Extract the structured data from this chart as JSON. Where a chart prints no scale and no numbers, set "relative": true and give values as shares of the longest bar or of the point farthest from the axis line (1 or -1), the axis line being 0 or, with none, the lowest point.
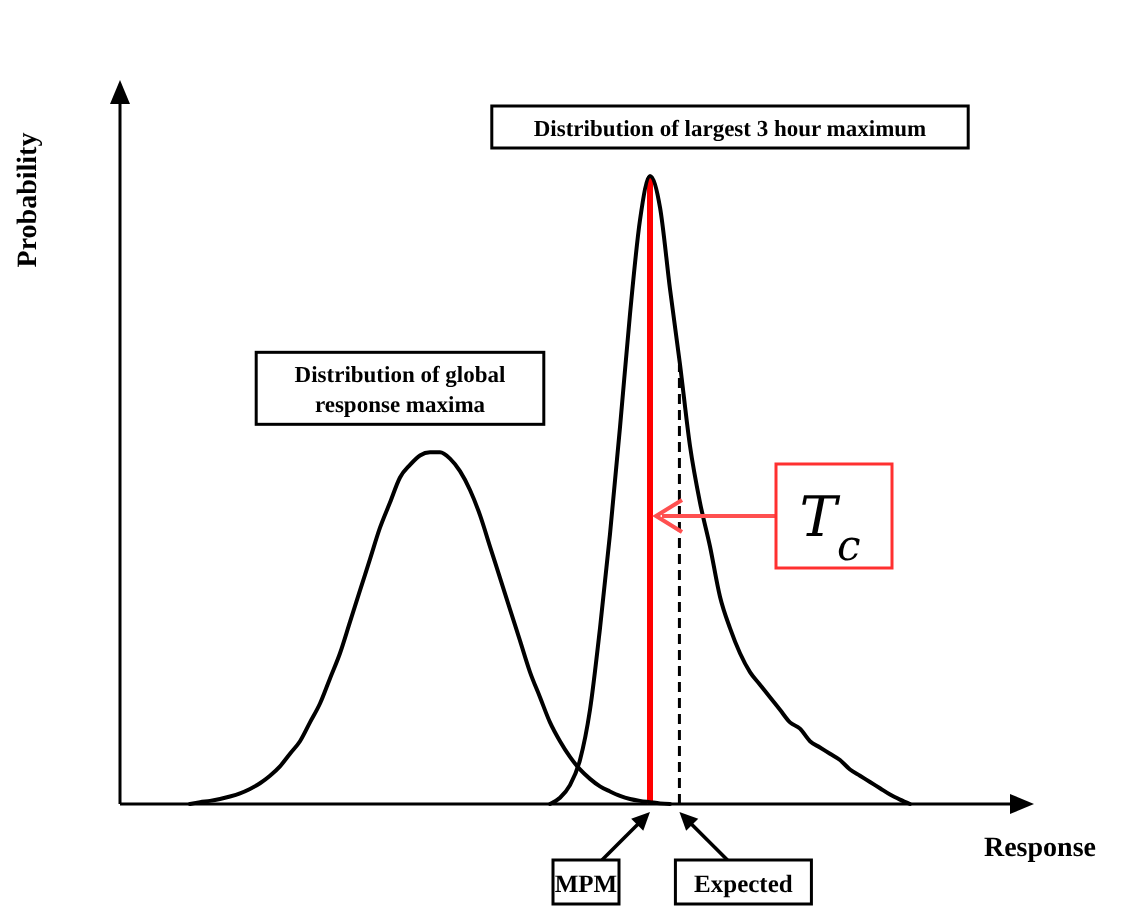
{
  "chart_data": {
    "type": "line",
    "relative": true,
    "xlabel": "Response",
    "ylabel": "Probability",
    "line_style": "solid",
    "categories": [
      null,
      null,
      null,
      null,
      null,
      null,
      null,
      null,
      null,
      null,
      null,
      null,
      null,
      null,
      null,
      null,
      null,
      null,
      null,
      null,
      null,
      null,
      null,
      null,
      null,
      null,
      null,
      null,
      null,
      null,
      null,
      null,
      null,
      null,
      null,
      null,
      null,
      null,
      null,
      null,
      null,
      null,
      null,
      null,
      null,
      null,
      null,
      null,
      null,
      null,
      null,
      null,
      null,
      null,
      null,
      null,
      null,
      null,
      null,
      null,
      null,
      null,
      null,
      null,
      null,
      null,
      null,
      null,
      null,
      null,
      null,
      null,
      null,
      null,
      null,
      null,
      null,
      null,
      null,
      null,
      null,
      null,
      null,
      null,
      null,
      null,
      null,
      null,
      null,
      null
    ],
    "series": [
      {
        "name": "Distribution of global response maxima",
        "color": "#000000",
        "values": [
          null,
          null,
          null,
          null,
          null,
          null,
          null,
          0,
          0.003,
          0.005,
          0.008,
          0.012,
          0.017,
          0.024,
          0.033,
          0.045,
          0.06,
          0.08,
          0.1,
          0.13,
          0.16,
          0.2,
          0.24,
          0.29,
          0.34,
          0.39,
          0.44,
          0.48,
          0.52,
          0.54,
          0.555,
          0.56,
          0.56,
          0.55,
          0.53,
          0.5,
          0.46,
          0.41,
          0.36,
          0.31,
          0.26,
          0.21,
          0.17,
          0.13,
          0.1,
          0.075,
          0.055,
          0.04,
          0.028,
          0.02,
          0.013,
          0.008,
          0.005,
          0.003,
          0.001,
          0,
          null,
          null,
          null,
          null,
          null,
          null,
          null,
          null,
          null,
          null,
          null,
          null,
          null,
          null,
          null,
          null,
          null,
          null,
          null,
          null,
          null,
          null,
          null,
          null,
          null,
          null,
          null,
          null,
          null,
          null,
          null,
          null,
          null,
          null
        ]
      },
      {
        "name": "Distribution of largest 3 hour maximum",
        "color": "#000000",
        "values": [
          null,
          null,
          null,
          null,
          null,
          null,
          null,
          null,
          null,
          null,
          null,
          null,
          null,
          null,
          null,
          null,
          null,
          null,
          null,
          null,
          null,
          null,
          null,
          null,
          null,
          null,
          null,
          null,
          null,
          null,
          null,
          null,
          null,
          null,
          null,
          null,
          null,
          null,
          null,
          null,
          null,
          null,
          null,
          0,
          0.01,
          0.03,
          0.07,
          0.15,
          0.28,
          0.43,
          0.6,
          0.78,
          0.93,
          1,
          0.95,
          0.82,
          0.7,
          0.57,
          0.48,
          0.41,
          0.33,
          0.28,
          0.24,
          0.21,
          0.19,
          0.17,
          0.15,
          0.13,
          0.12,
          0.1,
          0.09,
          0.08,
          0.07,
          0.055,
          0.045,
          0.035,
          0.025,
          0.015,
          0.007,
          0,
          null,
          null,
          null,
          null,
          null,
          null,
          null,
          null,
          null,
          null
        ]
      }
    ],
    "annotations": [
      "T$_{c}$",
      "MPM",
      "Expected"
    ]
  }
}
